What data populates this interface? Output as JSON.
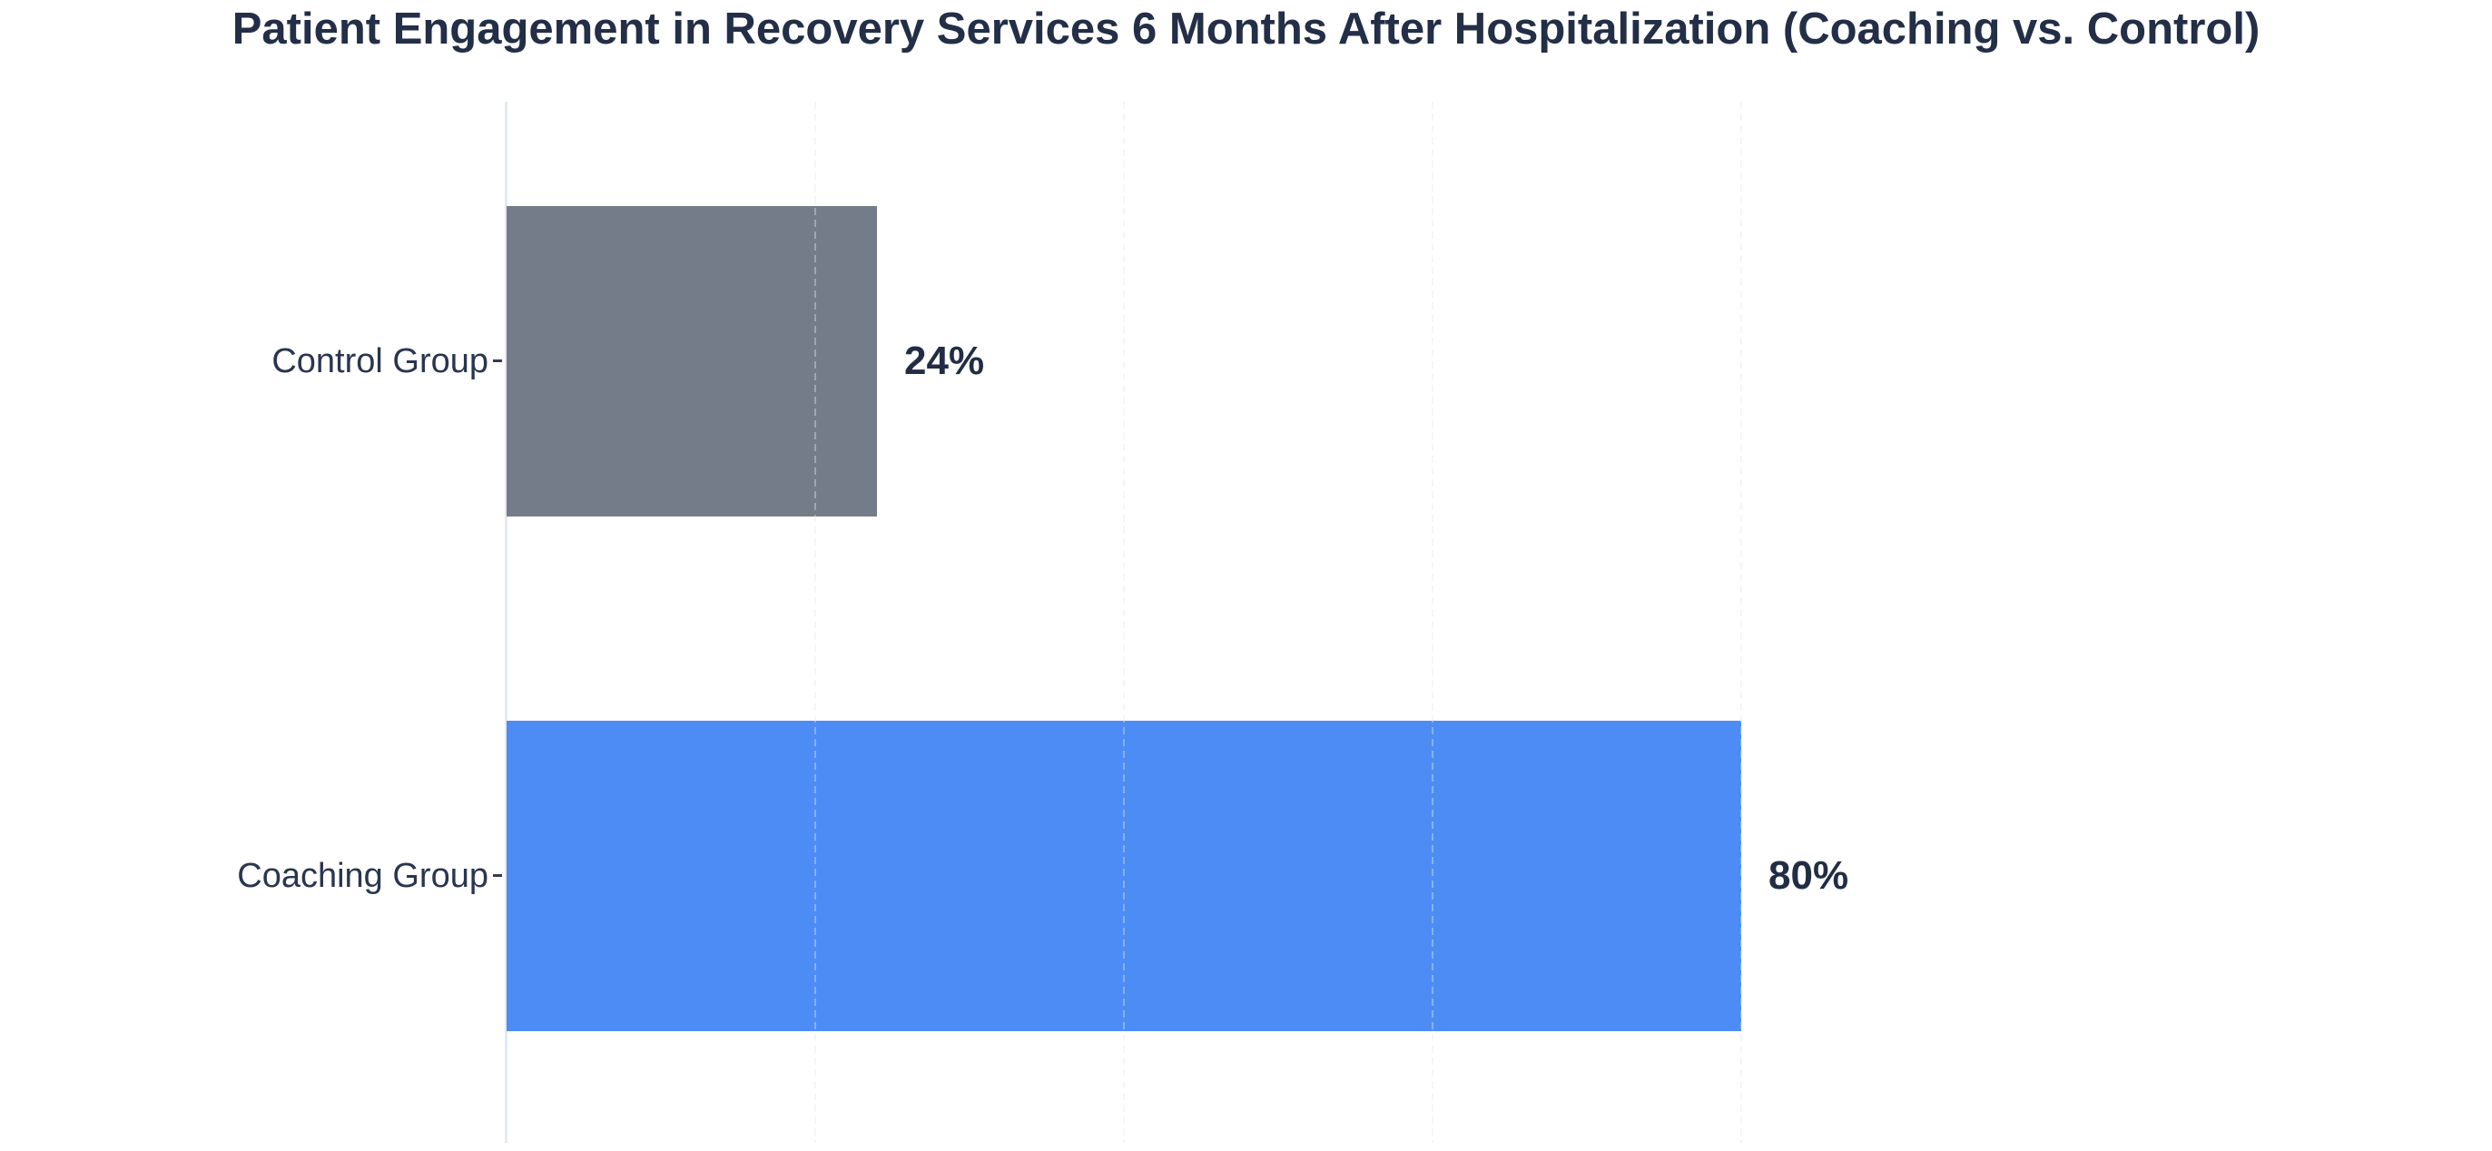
{
  "chart_data": {
    "type": "bar",
    "orientation": "horizontal",
    "title": "Patient Engagement in Recovery Services 6 Months After Hospitalization (Coaching vs. Control)",
    "categories": [
      "Control Group",
      "Coaching Group"
    ],
    "values": [
      24,
      80
    ],
    "value_labels": [
      "24%",
      "80%"
    ],
    "bar_colors": [
      "#757C89",
      "#4D8CF5"
    ],
    "xlabel": "",
    "ylabel": "",
    "xlim": [
      0,
      85
    ],
    "grid_values": [
      20,
      40,
      60,
      80
    ],
    "grid": "dashed-vertical",
    "x_tick_labels_visible": false,
    "legend_position": "none"
  },
  "colors": {
    "background": "#FFFFFF",
    "title_text": "#232E47",
    "category_text": "#2A3550",
    "value_text": "#222D45",
    "axis_line": "#E4E9F2",
    "gridline": "#EFF1F3",
    "tick": "#333D52",
    "bar_control": "#757C89",
    "bar_coaching": "#4D8CF5"
  }
}
